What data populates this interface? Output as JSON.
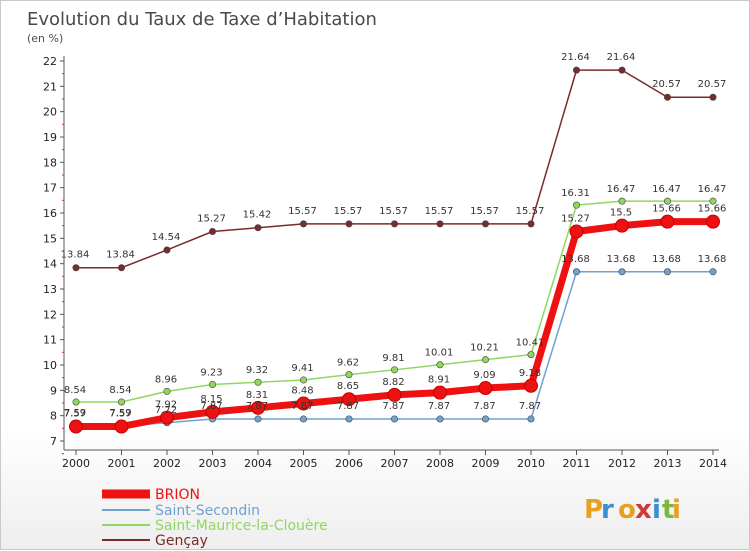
{
  "chart_data": {
    "type": "line",
    "title": "Evolution du Taux de Taxe d’Habitation",
    "subtitle": "(en %)",
    "x": [
      "2000",
      "2001",
      "2002",
      "2003",
      "2004",
      "2005",
      "2006",
      "2007",
      "2008",
      "2009",
      "2010",
      "2011",
      "2012",
      "2013",
      "2014"
    ],
    "ylim": [
      7,
      22
    ],
    "yticks": [
      "7",
      "8",
      "9",
      "10",
      "11",
      "12",
      "13",
      "14",
      "15",
      "16",
      "17",
      "18",
      "19",
      "20",
      "21",
      "22"
    ],
    "grid": false,
    "legend_position": "bottom-left",
    "series": [
      {
        "name": "BRION",
        "color": "#ee1111",
        "values": [
          7.57,
          7.57,
          7.92,
          8.15,
          8.31,
          8.48,
          8.65,
          8.82,
          8.91,
          9.09,
          9.18,
          15.27,
          15.5,
          15.66,
          15.66
        ]
      },
      {
        "name": "Saint-Secondin",
        "color": "#6fa2cf",
        "values": [
          7.59,
          7.59,
          7.72,
          7.87,
          7.87,
          7.87,
          7.87,
          7.87,
          7.87,
          7.87,
          7.87,
          13.68,
          13.68,
          13.68,
          13.68
        ]
      },
      {
        "name": "Saint-Maurice-la-Clouère",
        "color": "#8fd860",
        "values": [
          8.54,
          8.54,
          8.96,
          9.23,
          9.32,
          9.41,
          9.62,
          9.81,
          10.01,
          10.21,
          10.41,
          16.31,
          16.47,
          16.47,
          16.47
        ]
      },
      {
        "name": "Gençay",
        "color": "#7b2b2b",
        "values": [
          13.84,
          13.84,
          14.54,
          15.27,
          15.42,
          15.57,
          15.57,
          15.57,
          15.57,
          15.57,
          15.57,
          21.64,
          21.64,
          20.57,
          20.57
        ]
      }
    ],
    "data_labels": {
      "BRION": [
        "7.57",
        "7.57",
        "7.92",
        "8.15",
        "8.31",
        "8.48",
        "8.65",
        "8.82",
        "8.91",
        "9.09",
        "9.18",
        "15.27",
        "15.5",
        "15.66",
        "15.66"
      ],
      "Saint-Secondin": [
        "7.59",
        "7.59",
        "7.72",
        "7.87",
        "7.87",
        "7.87",
        "7.87",
        "7.87",
        "7.87",
        "7.87",
        "7.87",
        "13.68",
        "13.68",
        "13.68",
        "13.68"
      ],
      "Saint-Maurice-la-Clouère": [
        "8.54",
        "8.54",
        "8.96",
        "9.23",
        "9.32",
        "9.41",
        "9.62",
        "9.81",
        "10.01",
        "10.21",
        "10.41",
        "16.31",
        "16.47",
        "16.47",
        "16.47"
      ],
      "Gençay": [
        "13.84",
        "13.84",
        "14.54",
        "15.27",
        "15.42",
        "15.57",
        "15.57",
        "15.57",
        "15.57",
        "15.57",
        "15.57",
        "21.64",
        "21.64",
        "20.57",
        "20.57"
      ]
    }
  },
  "logo": {
    "text": "Proxiti",
    "colors": [
      "#e8a020",
      "#3a8fd0",
      "#e8a020",
      "#d03a3a",
      "#3a8fd0",
      "#79b83a",
      "#e8a020"
    ]
  }
}
